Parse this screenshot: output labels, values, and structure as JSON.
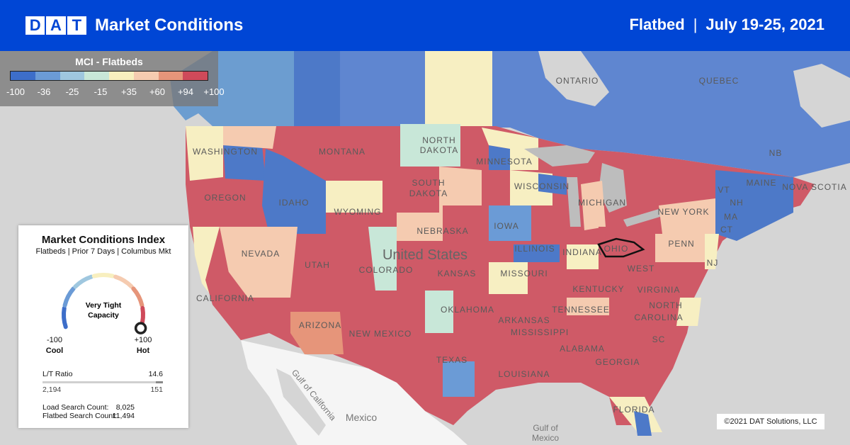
{
  "header": {
    "logo_letters": [
      "D",
      "A",
      "T"
    ],
    "title": "Market Conditions",
    "equipment": "Flatbed",
    "separator": "|",
    "date_range": "July 19-25, 2021"
  },
  "legend": {
    "title": "MCI - Flatbeds",
    "ticks": [
      "-100",
      "-36",
      "-25",
      "-15",
      "+35",
      "+60",
      "+94",
      "+100"
    ],
    "colors": [
      "#3d6ec9",
      "#6b9bd6",
      "#9fc7df",
      "#c8e7d8",
      "#f8efbf",
      "#f5cbb0",
      "#e6957a",
      "#cf4a5a"
    ]
  },
  "card": {
    "title": "Market Conditions Index",
    "subtitle": "Flatbeds | Prior 7 Days | Columbus Mkt",
    "gauge_label_1": "Very Tight",
    "gauge_label_2": "Capacity",
    "gauge_value": 100,
    "min_value": "-100",
    "min_label": "Cool",
    "max_value": "+100",
    "max_label": "Hot",
    "lt_ratio_label": "L/T Ratio",
    "lt_ratio_value": "14.6",
    "loads": "2,194",
    "trucks": "151",
    "load_search_label": "Load Search Count:",
    "load_search_value": "8,025",
    "flatbed_search_label": "Flatbed Search Count:",
    "flatbed_search_value": "11,494"
  },
  "map_labels": {
    "ontario": "ONTARIO",
    "quebec": "QUEBEC",
    "nb": "NB",
    "maine": "MAINE",
    "nova_scotia": "NOVA SCOTIA",
    "washington": "WASHINGTON",
    "montana": "MONTANA",
    "north_dakota_1": "NORTH",
    "north_dakota_2": "DAKOTA",
    "minnesota": "MINNESOTA",
    "oregon": "OREGON",
    "idaho": "IDAHO",
    "south_dakota_1": "SOUTH",
    "south_dakota_2": "DAKOTA",
    "wisconsin": "WISCONSIN",
    "michigan": "MICHIGAN",
    "wyoming": "WYOMING",
    "iowa": "IOWA",
    "nebraska": "NEBRASKA",
    "new_york": "NEW YORK",
    "vt": "VT",
    "nh": "NH",
    "ma": "MA",
    "ct": "CT",
    "nevada": "NEVADA",
    "utah": "UTAH",
    "united_states": "United States",
    "colorado": "COLORADO",
    "illinois": "ILLINOIS",
    "indiana": "INDIANA",
    "ohio": "OHIO",
    "penn": "PENN",
    "nj": "NJ",
    "california": "CALIFORNIA",
    "kansas": "KANSAS",
    "missouri": "MISSOURI",
    "west_virginia": "WEST",
    "virginia": "VIRGINIA",
    "kentucky": "KENTUCKY",
    "north_carolina": "NORTH",
    "tennessee": "TENNESSEE",
    "oklahoma": "OKLAHOMA",
    "arkansas": "ARKANSAS",
    "carolina": "CAROLINA",
    "arizona": "ARIZONA",
    "new_mexico": "NEW MEXICO",
    "mississippi": "MISSISSIPPI",
    "alabama": "ALABAMA",
    "georgia": "GEORGIA",
    "sc": "SC",
    "texas": "TEXAS",
    "louisiana": "LOUISIANA",
    "florida": "FLORIDA",
    "gulf_of_california": "Gulf of California",
    "mexico": "Mexico",
    "gulf_of_mexico_1": "Gulf of",
    "gulf_of_mexico_2": "Mexico"
  },
  "copyright": "©2021 DAT Solutions, LLC"
}
